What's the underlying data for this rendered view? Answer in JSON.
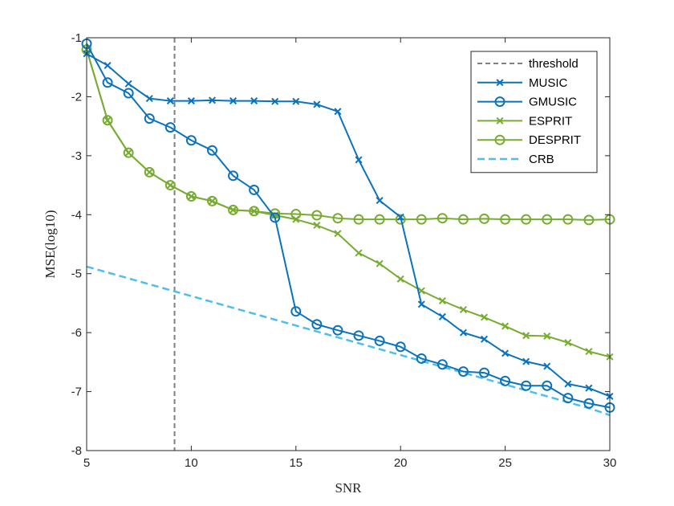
{
  "chart_data": {
    "type": "line",
    "title": "",
    "xlabel": "SNR",
    "ylabel": "MSE(log10)",
    "xlim": [
      5,
      30
    ],
    "ylim": [
      -8,
      -1
    ],
    "xticks": [
      "5",
      "10",
      "15",
      "20",
      "25",
      "30"
    ],
    "yticks": [
      "-1",
      "-2",
      "-3",
      "-4",
      "-5",
      "-6",
      "-7",
      "-8"
    ],
    "grid": false,
    "legend_position": "top-right",
    "threshold": {
      "name": "threshold",
      "x": 9.2,
      "color": "#7f7f7f"
    },
    "x": [
      5,
      6,
      7,
      8,
      9,
      10,
      11,
      12,
      13,
      14,
      15,
      16,
      17,
      18,
      19,
      20,
      21,
      22,
      23,
      24,
      25,
      26,
      27,
      28,
      29,
      30
    ],
    "series": [
      {
        "name": "MUSIC",
        "color": "#0b72bd",
        "marker": "x",
        "values": [
          -1.27,
          -1.47,
          -1.78,
          -2.03,
          -2.07,
          -2.07,
          -2.06,
          -2.07,
          -2.07,
          -2.08,
          -2.08,
          -2.13,
          -2.25,
          -3.07,
          -3.76,
          -4.04,
          -5.52,
          -5.73,
          -6.0,
          -6.11,
          -6.35,
          -6.49,
          -6.57,
          -6.87,
          -6.94,
          -7.08
        ]
      },
      {
        "name": "GMUSIC",
        "color": "#0b72bd",
        "marker": "o",
        "values": [
          -1.1,
          -1.76,
          -1.94,
          -2.37,
          -2.52,
          -2.74,
          -2.91,
          -3.34,
          -3.58,
          -4.05,
          -5.64,
          -5.86,
          -5.96,
          -6.05,
          -6.14,
          -6.24,
          -6.44,
          -6.54,
          -6.66,
          -6.68,
          -6.82,
          -6.9,
          -6.9,
          -7.11,
          -7.2,
          -7.27
        ]
      },
      {
        "name": "ESPRIT",
        "color": "#77ac30",
        "marker": "x",
        "values": [
          -1.2,
          -2.4,
          -2.95,
          -3.28,
          -3.5,
          -3.69,
          -3.77,
          -3.92,
          -3.94,
          -4.01,
          -4.08,
          -4.18,
          -4.32,
          -4.65,
          -4.83,
          -5.09,
          -5.29,
          -5.46,
          -5.61,
          -5.74,
          -5.89,
          -6.05,
          -6.06,
          -6.17,
          -6.32,
          -6.41
        ]
      },
      {
        "name": "DESPRIT",
        "color": "#77ac30",
        "marker": "o",
        "values": [
          -1.2,
          -2.4,
          -2.95,
          -3.28,
          -3.5,
          -3.69,
          -3.77,
          -3.92,
          -3.94,
          -3.98,
          -3.99,
          -4.01,
          -4.06,
          -4.08,
          -4.08,
          -4.08,
          -4.08,
          -4.06,
          -4.08,
          -4.07,
          -4.08,
          -4.08,
          -4.08,
          -4.08,
          -4.09,
          -4.08
        ]
      },
      {
        "name": "CRB",
        "color": "#4dbeee",
        "marker": "none",
        "dashed": true,
        "values": [
          -4.88,
          -4.98,
          -5.08,
          -5.18,
          -5.28,
          -5.38,
          -5.48,
          -5.58,
          -5.68,
          -5.78,
          -5.88,
          -5.98,
          -6.08,
          -6.18,
          -6.28,
          -6.38,
          -6.48,
          -6.58,
          -6.68,
          -6.78,
          -6.88,
          -6.98,
          -7.08,
          -7.18,
          -7.28,
          -7.4
        ]
      }
    ]
  }
}
